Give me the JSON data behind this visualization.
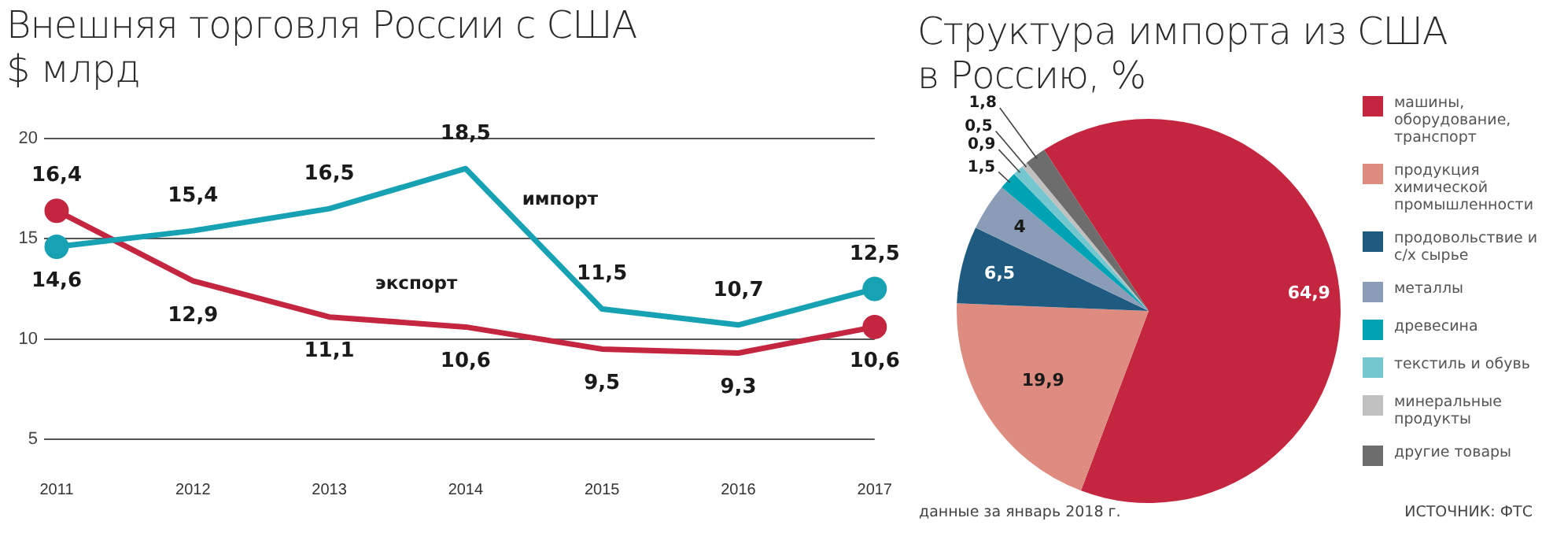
{
  "chart_data": [
    {
      "type": "line",
      "title": "Внешняя торговля России с США",
      "subtitle": "$ млрд",
      "categories": [
        "2011",
        "2012",
        "2013",
        "2014",
        "2015",
        "2016",
        "2017"
      ],
      "series": [
        {
          "name": "импорт",
          "color": "#17a2b4",
          "values": [
            14.6,
            15.4,
            16.5,
            18.5,
            11.5,
            10.7,
            12.5
          ],
          "value_labels": [
            "14,6",
            "15,4",
            "16,5",
            "18,5",
            "11,5",
            "10,7",
            "12,5"
          ]
        },
        {
          "name": "экспорт",
          "color": "#c4253f",
          "values": [
            16.4,
            12.9,
            11.1,
            10.6,
            9.5,
            9.3,
            10.6
          ],
          "value_labels": [
            "16,4",
            "12,9",
            "11,1",
            "10,6",
            "9,5",
            "9,3",
            "10,6"
          ]
        }
      ],
      "ylim": [
        5,
        20
      ],
      "yticks": [
        5,
        10,
        15,
        20
      ],
      "grid": "y",
      "legend": false
    },
    {
      "type": "pie",
      "title": "Структура импорта из США в Россию, %",
      "categories": [
        "машины, оборудование, транспорт",
        "продукция химической промышленности",
        "продовольствие и с/х сырье",
        "металлы",
        "древесина",
        "текстиль и обувь",
        "минеральные продукты",
        "другие товары"
      ],
      "values": [
        64.9,
        19.9,
        6.5,
        4,
        1.5,
        0.9,
        0.5,
        1.8
      ],
      "value_labels": [
        "64,9",
        "19,9",
        "6,5",
        "4",
        "1,5",
        "0,9",
        "0,5",
        "1,8"
      ],
      "colors": [
        "#c4253f",
        "#de8c7f",
        "#1f5a80",
        "#8b9db6",
        "#00a3b4",
        "#74c6cf",
        "#c0c0c0",
        "#6d6d6d"
      ],
      "legend": "right",
      "annotations": [
        "данные за январь 2018 г.",
        "ИСТОЧНИК: ФТС"
      ]
    }
  ]
}
